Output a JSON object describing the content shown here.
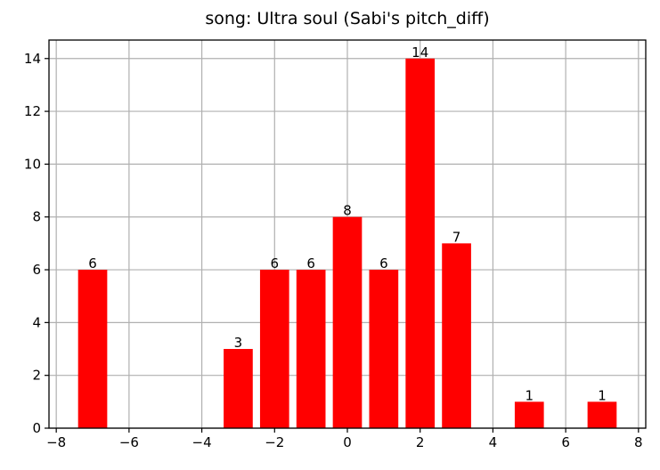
{
  "chart_data": {
    "type": "bar",
    "title": "song: Ultra soul (Sabi's pitch_diff)",
    "xlabel": "",
    "ylabel": "",
    "x": [
      -7,
      -3,
      -2,
      -1,
      0,
      1,
      2,
      3,
      5,
      7
    ],
    "values": [
      6,
      3,
      6,
      6,
      8,
      6,
      14,
      7,
      1,
      1
    ],
    "data_labels": [
      "6",
      "3",
      "6",
      "6",
      "8",
      "6",
      "14",
      "7",
      "1",
      "1"
    ],
    "xlim": [
      -8.2,
      8.2
    ],
    "ylim": [
      0,
      14.7
    ],
    "x_ticks": [
      -8,
      -6,
      -4,
      -2,
      0,
      2,
      4,
      6,
      8
    ],
    "x_tick_labels": [
      "−8",
      "−6",
      "−4",
      "−2",
      "0",
      "2",
      "4",
      "6",
      "8"
    ],
    "y_ticks": [
      0,
      2,
      4,
      6,
      8,
      10,
      12,
      14
    ],
    "y_tick_labels": [
      "0",
      "2",
      "4",
      "6",
      "8",
      "10",
      "12",
      "14"
    ],
    "bar_width": 0.8,
    "grid": true,
    "legend": "none",
    "colors": {
      "bar": "#ff0000",
      "grid": "#b0b0b0",
      "axis": "#000000"
    }
  }
}
